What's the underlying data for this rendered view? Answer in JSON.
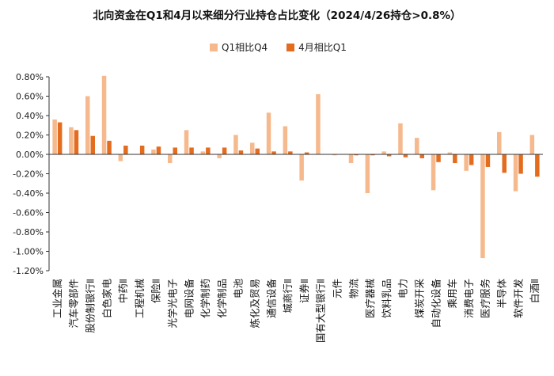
{
  "chart_data": {
    "type": "bar",
    "title": "北向资金在Q1和4月以来细分行业持仓占比变化（2024/4/26持仓>0.8%）",
    "categories": [
      "工业金属",
      "汽车零部件",
      "股份制银行Ⅱ",
      "白色家电",
      "中药Ⅱ",
      "工程机械",
      "保险Ⅱ",
      "光学光电子",
      "电网设备",
      "化学制药",
      "化学制品",
      "电池",
      "炼化及贸易",
      "通信设备",
      "城商行Ⅱ",
      "证券Ⅱ",
      "国有大型银行Ⅱ",
      "元件",
      "物流",
      "医疗器械",
      "饮料乳品",
      "电力",
      "煤炭开采",
      "自动化设备",
      "乘用车",
      "消费电子",
      "医疗服务",
      "半导体",
      "软件开发",
      "白酒Ⅱ"
    ],
    "series": [
      {
        "name": "Q1相比Q4",
        "color": "#F5B98D",
        "values": [
          0.36,
          0.28,
          0.6,
          0.81,
          -0.07,
          0.0,
          0.05,
          -0.09,
          0.25,
          0.03,
          -0.04,
          0.2,
          0.12,
          0.43,
          0.29,
          -0.27,
          0.62,
          -0.01,
          -0.09,
          -0.4,
          0.03,
          0.32,
          0.17,
          -0.37,
          0.02,
          -0.17,
          -1.07,
          0.23,
          -0.38,
          0.2
        ]
      },
      {
        "name": "4月相比Q1",
        "color": "#E36C1F",
        "values": [
          0.33,
          0.25,
          0.19,
          0.14,
          0.09,
          0.09,
          0.08,
          0.07,
          0.07,
          0.07,
          0.07,
          0.04,
          0.06,
          0.03,
          0.03,
          0.02,
          0.0,
          0.0,
          -0.01,
          -0.01,
          -0.02,
          -0.03,
          -0.04,
          -0.08,
          -0.09,
          -0.11,
          -0.13,
          -0.19,
          -0.2,
          -0.23
        ]
      }
    ],
    "ylim": [
      -1.2,
      0.8
    ],
    "yticks": [
      "0.80%",
      "0.60%",
      "0.40%",
      "0.20%",
      "0.00%",
      "-0.20%",
      "-0.40%",
      "-0.60%",
      "-0.80%",
      "-1.00%",
      "-1.20%"
    ],
    "ytick_values": [
      0.8,
      0.6,
      0.4,
      0.2,
      0,
      -0.2,
      -0.4,
      -0.6,
      -0.8,
      -1.0,
      -1.2
    ],
    "grid": false,
    "legend_position": "top-center"
  }
}
